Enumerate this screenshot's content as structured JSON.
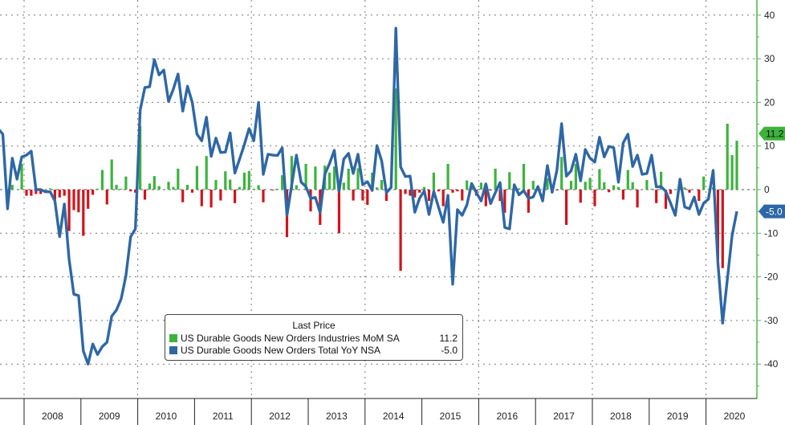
{
  "chart_data": {
    "type": "bar+line",
    "x_start": "2007-07",
    "x_frequency": "monthly",
    "x_tick_labels": [
      "2008",
      "2009",
      "2010",
      "2011",
      "2012",
      "2013",
      "2014",
      "2015",
      "2016",
      "2017",
      "2018",
      "2019",
      "2020"
    ],
    "y_axis_position": "right",
    "ylim": [
      -45,
      42
    ],
    "y_ticks": [
      40,
      30,
      20,
      10,
      0,
      -10,
      -20,
      -30,
      -40
    ],
    "y_tick_labels": [
      "40",
      "30",
      "20",
      "10",
      "0",
      "-10",
      "-20",
      "-30",
      "-40"
    ],
    "grid": true,
    "legend": {
      "title": "Last Price",
      "placement": "bottom-left",
      "entries": [
        {
          "name": "US Durable Goods New Orders Industries MoM SA",
          "value": "11.2"
        },
        {
          "name": "US Durable Goods New Orders Total YoY NSA",
          "value": "-5.0"
        }
      ]
    },
    "last_value_tags": [
      "11.2",
      "-5.0"
    ],
    "colors": {
      "mom_positive": "#3db33d",
      "mom_negative": "#d0141c",
      "yoy_line": "#2f67a5",
      "axis": "#4cb84c"
    },
    "series": [
      {
        "name": "US Durable Goods New Orders Industries MoM SA",
        "type": "bar",
        "values": [
          2.6,
          0,
          0,
          1.1,
          0,
          5.9,
          -1.4,
          -1.4,
          -1,
          -1,
          0,
          0.3,
          -2.3,
          -1.8,
          -1.4,
          -9.5,
          -4.7,
          -5.2,
          -10.6,
          -4.4,
          -1.2,
          0.2,
          4.5,
          -3.4,
          6.9,
          1.1,
          0.2,
          3,
          -0.4,
          -0.7,
          14.6,
          -2.3,
          1.4,
          3.1,
          0.8,
          0,
          1.8,
          0.6,
          4.8,
          -2.9,
          1.1,
          -0.7,
          5.4,
          -3.8,
          7.7,
          -4.1,
          2.2,
          -2.5,
          4.2,
          2.3,
          -3.1,
          0.6,
          3.9,
          4.3,
          0.2,
          1,
          -2.9,
          0,
          -0.2,
          0.2,
          3.3,
          -10.9,
          7.7,
          1,
          0,
          5.9,
          -5,
          5.3,
          -8.1,
          5.5,
          3.9,
          5.3,
          -10,
          1.6,
          4.8,
          -2.5,
          4.9,
          -2.5,
          -3.5,
          3.9,
          0.5,
          2.2,
          -2.6,
          0,
          23.2,
          -18.6,
          -1,
          -1.4,
          -1.8,
          -0.7,
          0.6,
          -2.6,
          3.9,
          -0.4,
          -3.8,
          5.9,
          -0.7,
          -0.4,
          -2.5,
          2.1,
          0.5,
          -1.4,
          1.6,
          -3.8,
          -0.2,
          4.8,
          -2.6,
          -5.3,
          4,
          0,
          0.3,
          5.9,
          -5.3,
          2,
          0.8,
          0,
          2.6,
          -0.7,
          -0.2,
          7.5,
          -8.1,
          2,
          5.9,
          -3,
          1.8,
          2.7,
          -3.8,
          4.7,
          1.7,
          -0.6,
          1,
          0.6,
          -2.3,
          4.5,
          1.7,
          -4.1,
          0,
          2.2,
          0.2,
          -3.1,
          4.1,
          -4.4,
          -1,
          0,
          0.3,
          0.5,
          -0.7,
          0,
          -2.6,
          3,
          0.1,
          0.5,
          -16,
          -18,
          15.1,
          7.9,
          11.2
        ]
      },
      {
        "name": "US Durable Goods New Orders Total YoY NSA",
        "type": "line",
        "values": [
          14,
          12.7,
          -4.4,
          7.2,
          2.4,
          7.5,
          7.9,
          8.8,
          0,
          0,
          -0.5,
          -0.5,
          -2.6,
          -10.8,
          -3.3,
          -16,
          -24,
          -24.3,
          -37,
          -40,
          -35.4,
          -37.8,
          -36,
          -35,
          -29,
          -27.6,
          -25,
          -19.7,
          -10.8,
          -9,
          18.2,
          23.4,
          23.6,
          29.8,
          26.3,
          27.4,
          20.2,
          23,
          26.5,
          18,
          23.7,
          20,
          12.7,
          11.2,
          16.6,
          7.6,
          11.8,
          8.5,
          8.6,
          13,
          3.8,
          7,
          10.3,
          14,
          11.2,
          20,
          3.5,
          8.1,
          7.9,
          7.8,
          9.6,
          -5.9,
          1,
          7.9,
          1.7,
          0.7,
          -2,
          -1.8,
          -5.3,
          3.5,
          6,
          9,
          -0.4,
          7,
          8.3,
          3.7,
          8.1,
          1.1,
          1.8,
          -0.2,
          10.1,
          6.6,
          -0.7,
          0.5,
          37,
          5.2,
          3,
          3.1,
          -5.2,
          -2,
          -0.3,
          -5.7,
          -0.4,
          -4,
          -7.5,
          -1.3,
          -21.7,
          -4.6,
          -5.9,
          -3.5,
          1.4,
          -0.7,
          -2.6,
          1.3,
          -3.2,
          -0.7,
          1.6,
          -8.7,
          -9,
          1.1,
          -1.2,
          -0.2,
          -2,
          -1.7,
          0.7,
          -2.6,
          5.5,
          -0.6,
          4.4,
          15.1,
          3.1,
          4.3,
          8.1,
          2,
          9.2,
          7.2,
          6.3,
          12,
          7.5,
          9.9,
          9.6,
          1.7,
          10.7,
          12.7,
          5.3,
          7.9,
          3.5,
          3.7,
          7.9,
          0.6,
          0.7,
          -0.4,
          -3.1,
          -5.9,
          2.4,
          -4,
          -4.4,
          -1.7,
          -5.7,
          -3.1,
          -2.2,
          4.4,
          -16.7,
          -30.6,
          -20.5,
          -10.5,
          -5.0
        ]
      }
    ]
  }
}
